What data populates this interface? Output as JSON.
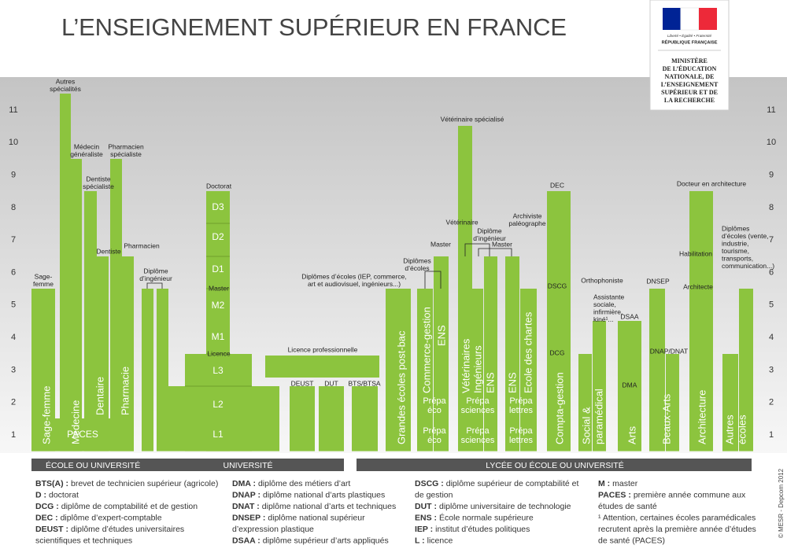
{
  "header": {
    "title": "L’ENSEIGNEMENT SUPÉRIEUR EN FRANCE",
    "motto": "Liberté • Égalité • Fraternité",
    "republic": "RÉPUBLIQUE FRANÇAISE",
    "ministry": [
      "MINISTÈRE",
      "DE L’ÉDUCATION",
      "NATIONALE, DE",
      "L’ENSEIGNEMENT",
      "SUPÉRIEUR ET DE",
      "LA RECHERCHE"
    ]
  },
  "levels": [
    1,
    2,
    3,
    4,
    5,
    6,
    7,
    8,
    9,
    10,
    11
  ],
  "labels": {
    "sage_femme_top": [
      "Sage-",
      "femme"
    ],
    "sage_femme": "Sage-femme",
    "autres_specialites": [
      "Autres",
      "spécialités"
    ],
    "medecin_generaliste": [
      "Médecin",
      "généraliste"
    ],
    "medecine": "Médecine",
    "dentiste_specialiste": [
      "Dentiste",
      "spécialiste"
    ],
    "dentiste": "Dentiste",
    "dentaire": "Dentaire",
    "pharmacien_specialiste": [
      "Pharmacien",
      "spécialiste"
    ],
    "pharmacien": "Pharmacien",
    "pharmacie": "Pharmacie",
    "paces": "PACES",
    "diplome_ingenieur": [
      "Diplôme",
      "d’ingénieur"
    ],
    "doctorat": "Doctorat",
    "d3": "D3",
    "d2": "D2",
    "d1": "D1",
    "master": "Master",
    "m2": "M2",
    "m1": "M1",
    "licence": "Licence",
    "l3": "L3",
    "l2": "L2",
    "l1": "L1",
    "licence_pro": "Licence professionnelle",
    "deust": "DEUST",
    "dut": "DUT",
    "bts": "BTS/BTSA",
    "diplomes_ecoles_iep": [
      "Diplômes d’écoles (IEP, commerce,",
      "art et audiovisuel, ingénieurs...)"
    ],
    "grandes_ecoles": "Grandes écoles post-bac",
    "diplomes_ecoles": [
      "Diplômes",
      "d’écoles"
    ],
    "master_commerce": "Master",
    "commerce_gestion": "Commerce-gestion",
    "ens_1": "ENS",
    "prepa_eco_1": [
      "Prépa",
      "éco"
    ],
    "prepa_eco_2": [
      "Prépa",
      "éco"
    ],
    "veterinaire_specialise": "Vétérinaire spécialisé",
    "veterinaire": "Vétérinaire",
    "diplome_ingenieur_2": [
      "Diplôme",
      "d’ingénieur"
    ],
    "master_sciences": "Master",
    "veterinaires": "Vétérinaires",
    "ingenieurs": "Ingénieurs",
    "ens_2": "ENS",
    "prepa_sciences_1": [
      "Prépa",
      "sciences"
    ],
    "prepa_sciences_2": [
      "Prépa",
      "sciences"
    ],
    "archiviste": [
      "Archiviste",
      "paléographe"
    ],
    "ens_3": "ENS",
    "ecole_chartes": "Ecole des chartes",
    "prepa_lettres_1": [
      "Prépa",
      "lettres"
    ],
    "prepa_lettres_2": [
      "Prépa",
      "lettres"
    ],
    "dec": "DEC",
    "dscg": "DSCG",
    "dcg": "DCG",
    "compta": "Compta-gestion",
    "orthophoniste": "Orthophoniste",
    "assistante": [
      "Assistante",
      "sociale,",
      "infirmière,",
      "kiné¹..."
    ],
    "social": [
      "Social &",
      "paramédical"
    ],
    "dsaa": "DSAA",
    "dma": "DMA",
    "arts": "Arts",
    "dnsep": "DNSEP",
    "dnap": "DNAP/DNAT",
    "beaux_arts": "Beaux-Arts",
    "docteur_archi": "Docteur en architecture",
    "habilitation": "Habilitation",
    "architecte": "Architecte",
    "architecture": "Architecture",
    "diplomes_ecoles_vente": [
      "Diplômes",
      "d’écoles (vente,",
      "industrie,",
      "tourisme,",
      "transports,",
      "communication...)"
    ],
    "autres_ecoles": [
      "Autres",
      "écoles"
    ]
  },
  "bands": [
    "ÉCOLE OU UNIVERSITÉ",
    "UNIVERSITÉ",
    "LYCÉE OU ÉCOLE OU UNIVERSITÉ"
  ],
  "glossary": [
    [
      {
        "term": "BTS(A) :",
        "def": [
          "brevet de technicien supérieur (agricole)"
        ]
      },
      {
        "term": "D :",
        "def": [
          "doctorat"
        ]
      },
      {
        "term": "DCG :",
        "def": [
          "diplôme de comptabilité et de gestion"
        ]
      },
      {
        "term": "DEC :",
        "def": [
          "diplôme d’expert-comptable"
        ]
      },
      {
        "term": "DEUST :",
        "def": [
          "diplôme d’études universitaires",
          "scientifiques et techniques"
        ]
      }
    ],
    [
      {
        "term": "DMA :",
        "def": [
          "diplôme des métiers d’art"
        ]
      },
      {
        "term": "DNAP :",
        "def": [
          "diplôme national d’arts plastiques"
        ]
      },
      {
        "term": "DNAT :",
        "def": [
          "diplôme national d’arts et techniques"
        ]
      },
      {
        "term": "DNSEP :",
        "def": [
          "diplôme national supérieur",
          "d’expression plastique"
        ]
      },
      {
        "term": "DSAA :",
        "def": [
          "diplôme supérieur d’arts appliqués"
        ]
      }
    ],
    [
      {
        "term": "DSCG :",
        "def": [
          "diplôme supérieur de comptabilité et",
          "de gestion"
        ]
      },
      {
        "term": "DUT :",
        "def": [
          "diplôme universitaire de technologie"
        ]
      },
      {
        "term": "ENS :",
        "def": [
          "École normale supérieure"
        ]
      },
      {
        "term": "IEP :",
        "def": [
          "institut d’études politiques"
        ]
      },
      {
        "term": "L :",
        "def": [
          "licence"
        ]
      }
    ],
    [
      {
        "term": "M :",
        "def": [
          "master"
        ]
      },
      {
        "term": "PACES :",
        "def": [
          "première année commune aux",
          "études de santé"
        ]
      }
    ]
  ],
  "note": [
    "¹ Attention, certaines écoles paramédicales",
    "recrutent après la première année d’études",
    "de santé (PACES)"
  ],
  "copyright": "© MESR - Depcom 2012"
}
